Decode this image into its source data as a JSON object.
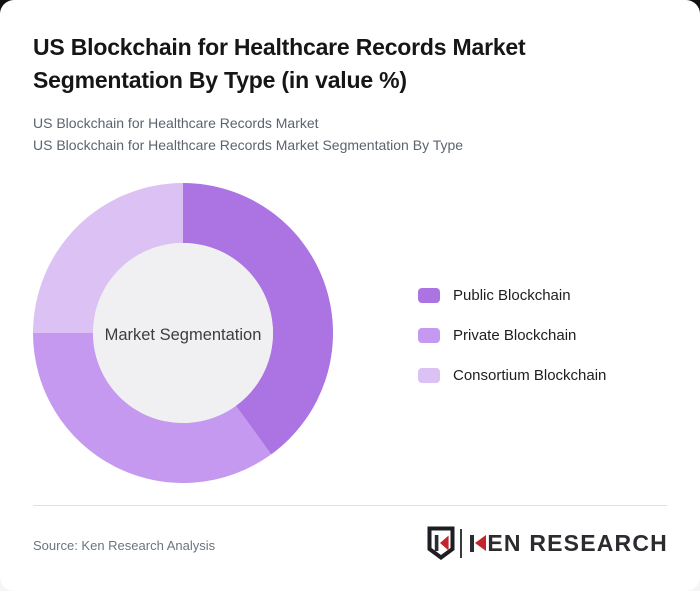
{
  "card": {
    "title": "US Blockchain for Healthcare Records Market Segmentation By Type (in value %)",
    "subtitle_line1": "US Blockchain for Healthcare Records Market",
    "subtitle_line2": "US Blockchain for Healthcare Records Market Segmentation By Type",
    "source": "Source: Ken Research Analysis"
  },
  "chart_data": {
    "type": "pie",
    "variant": "donut",
    "title": "US Blockchain for Healthcare Records Market Segmentation By Type (in value %)",
    "center_label": "Market Segmentation",
    "series": [
      {
        "name": "Public Blockchain",
        "value": 40,
        "color": "#ab74e2"
      },
      {
        "name": "Private Blockchain",
        "value": 35,
        "color": "#c499ef"
      },
      {
        "name": "Consortium Blockchain",
        "value": 25,
        "color": "#dcc2f4"
      }
    ],
    "start_angle_deg": -90,
    "direction": "clockwise",
    "inner_radius_ratio": 0.6,
    "center_fill": "#f0eff1",
    "legend_position": "right"
  },
  "logo": {
    "brand": "KEN RESEARCH",
    "brand_rest": "EN RESEARCH",
    "accent_color": "#c4252b",
    "text_color": "#2b2b30"
  }
}
